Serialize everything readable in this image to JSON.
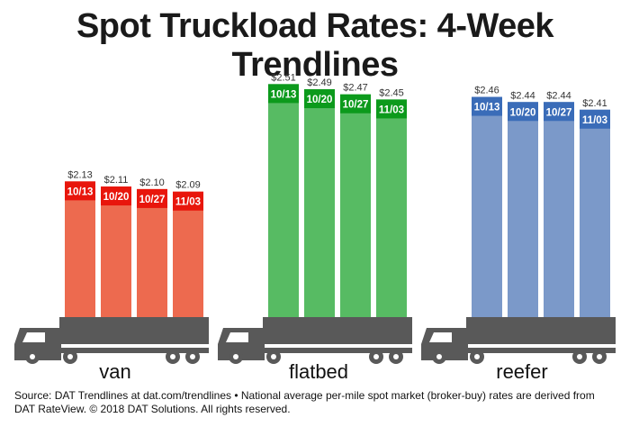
{
  "title": "Spot Truckload Rates: 4-Week Trendlines",
  "source": "Source: DAT Trendlines at dat.com/trendlines • National average per-mile spot market (broker-buy) rates are derived from DAT RateView. © 2018 DAT Solutions. All rights reserved.",
  "chart_data": {
    "type": "bar",
    "title": "Spot Truckload Rates: 4-Week Trendlines",
    "categories": [
      "10/13",
      "10/20",
      "10/27",
      "11/03"
    ],
    "ylim": [
      1.6,
      2.55
    ],
    "grid": false,
    "series": [
      {
        "name": "van",
        "values": [
          2.13,
          2.11,
          2.1,
          2.09
        ],
        "value_labels": [
          "$2.13",
          "$2.11",
          "$2.10",
          "$2.09"
        ],
        "color": "#ed6a4f",
        "cap_color": "#e8160c"
      },
      {
        "name": "flatbed",
        "values": [
          2.51,
          2.49,
          2.47,
          2.45
        ],
        "value_labels": [
          "$2.51",
          "$2.49",
          "$2.47",
          "$2.45"
        ],
        "color": "#57bb63",
        "cap_color": "#0c9a1c"
      },
      {
        "name": "reefer",
        "values": [
          2.46,
          2.44,
          2.44,
          2.41
        ],
        "value_labels": [
          "$2.46",
          "$2.44",
          "$2.44",
          "$2.41"
        ],
        "color": "#7b99c9",
        "cap_color": "#3a6cb8"
      }
    ],
    "truck_color": "#595959",
    "truck_icon": "semi-truck-icon"
  }
}
